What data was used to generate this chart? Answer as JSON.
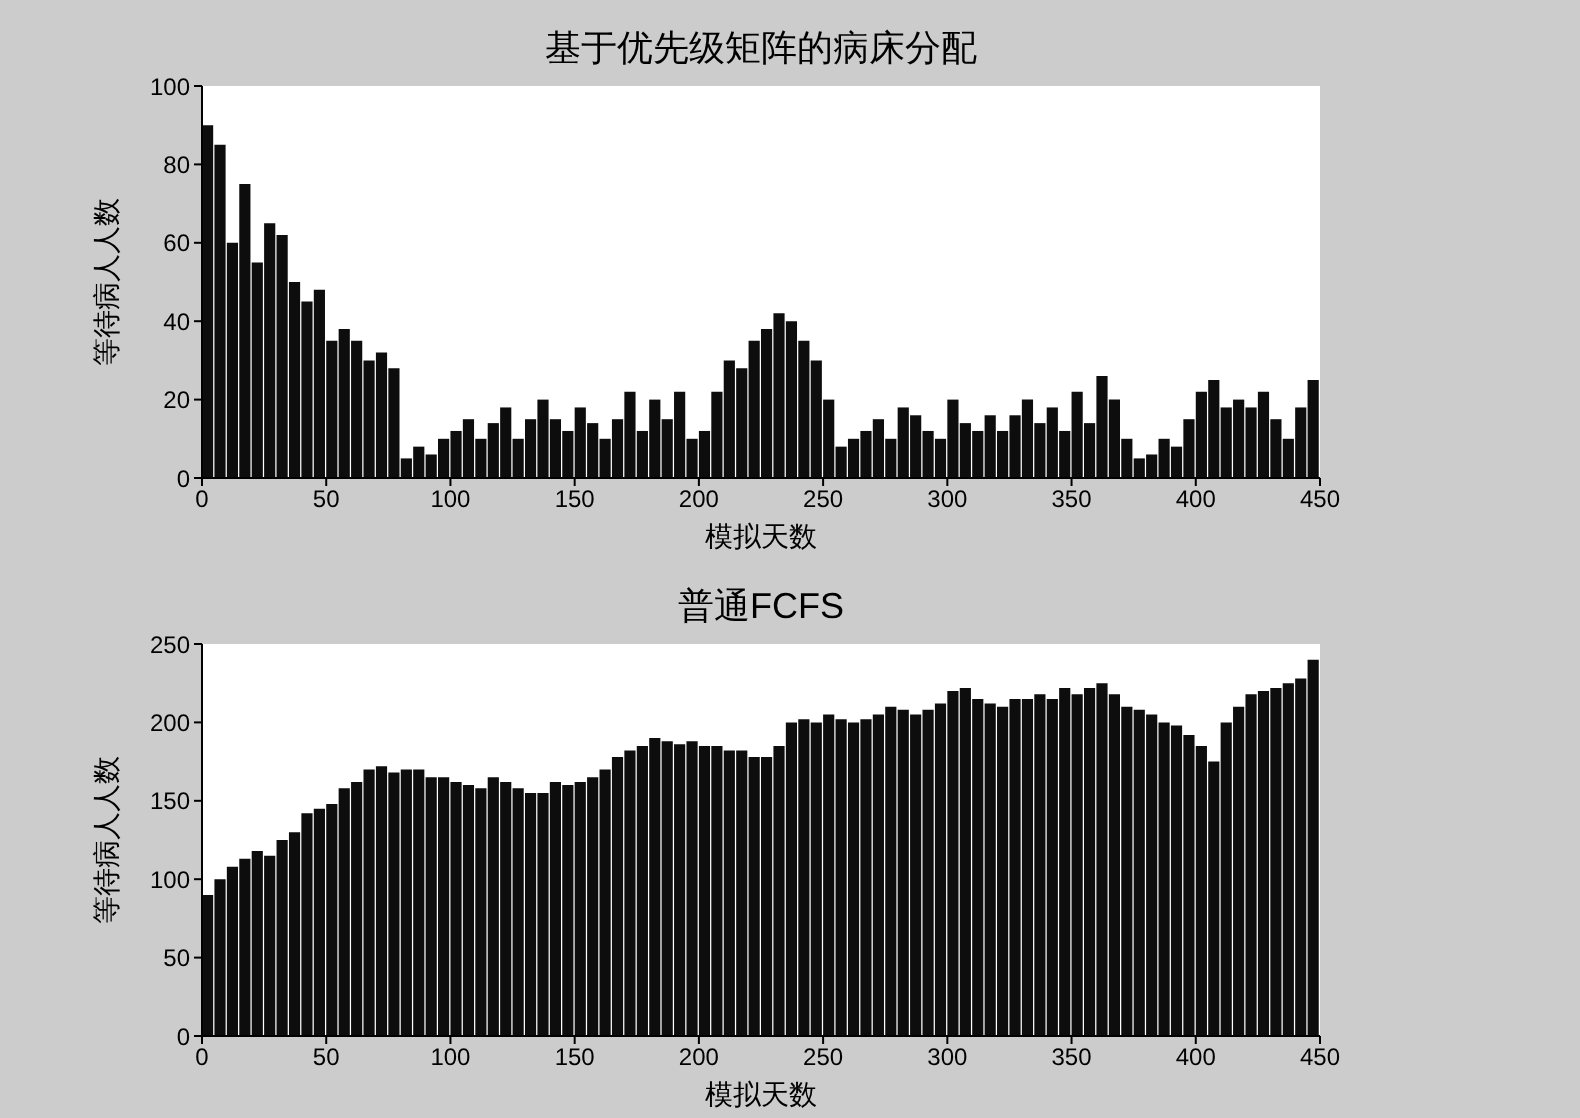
{
  "chart_data": [
    {
      "type": "bar",
      "title": "基于优先级矩阵的病床分配",
      "xlabel": "模拟天数",
      "ylabel": "等待病人人数",
      "color": "#0d0d0d",
      "xlim": [
        0,
        450
      ],
      "xticks": [
        0,
        50,
        100,
        150,
        200,
        250,
        300,
        350,
        400,
        450
      ],
      "ylim": [
        0,
        100
      ],
      "yticks": [
        0,
        20,
        40,
        60,
        80,
        100
      ],
      "x": [
        2.5,
        7.5,
        12.5,
        17.5,
        22.5,
        27.5,
        32.5,
        37.5,
        42.5,
        47.5,
        52.5,
        57.5,
        62.5,
        67.5,
        72.5,
        77.5,
        82.5,
        87.5,
        92.5,
        97.5,
        102.5,
        107.5,
        112.5,
        117.5,
        122.5,
        127.5,
        132.5,
        137.5,
        142.5,
        147.5,
        152.5,
        157.5,
        162.5,
        167.5,
        172.5,
        177.5,
        182.5,
        187.5,
        192.5,
        197.5,
        202.5,
        207.5,
        212.5,
        217.5,
        222.5,
        227.5,
        232.5,
        237.5,
        242.5,
        247.5,
        252.5,
        257.5,
        262.5,
        267.5,
        272.5,
        277.5,
        282.5,
        287.5,
        292.5,
        297.5,
        302.5,
        307.5,
        312.5,
        317.5,
        322.5,
        327.5,
        332.5,
        337.5,
        342.5,
        347.5,
        352.5,
        357.5,
        362.5,
        367.5,
        372.5,
        377.5,
        382.5,
        387.5,
        392.5,
        397.5,
        402.5,
        407.5,
        412.5,
        417.5,
        422.5,
        427.5,
        432.5,
        437.5,
        442.5,
        447.5
      ],
      "values": [
        90,
        85,
        60,
        75,
        55,
        65,
        62,
        50,
        45,
        48,
        35,
        38,
        35,
        30,
        32,
        28,
        5,
        8,
        6,
        10,
        12,
        15,
        10,
        14,
        18,
        10,
        15,
        20,
        15,
        12,
        18,
        14,
        10,
        15,
        22,
        12,
        20,
        15,
        22,
        10,
        12,
        22,
        30,
        28,
        35,
        38,
        42,
        40,
        35,
        30,
        20,
        8,
        10,
        12,
        15,
        10,
        18,
        16,
        12,
        10,
        20,
        14,
        12,
        16,
        12,
        16,
        20,
        14,
        18,
        12,
        22,
        14,
        26,
        20,
        10,
        5,
        6,
        10,
        8,
        15,
        22,
        25,
        18,
        20,
        18,
        22,
        15,
        10,
        18,
        25
      ]
    },
    {
      "type": "bar",
      "title": "普通FCFS",
      "xlabel": "模拟天数",
      "ylabel": "等待病人人数",
      "color": "#0d0d0d",
      "xlim": [
        0,
        450
      ],
      "xticks": [
        0,
        50,
        100,
        150,
        200,
        250,
        300,
        350,
        400,
        450
      ],
      "ylim": [
        0,
        250
      ],
      "yticks": [
        0,
        50,
        100,
        150,
        200,
        250
      ],
      "x": [
        2.5,
        7.5,
        12.5,
        17.5,
        22.5,
        27.5,
        32.5,
        37.5,
        42.5,
        47.5,
        52.5,
        57.5,
        62.5,
        67.5,
        72.5,
        77.5,
        82.5,
        87.5,
        92.5,
        97.5,
        102.5,
        107.5,
        112.5,
        117.5,
        122.5,
        127.5,
        132.5,
        137.5,
        142.5,
        147.5,
        152.5,
        157.5,
        162.5,
        167.5,
        172.5,
        177.5,
        182.5,
        187.5,
        192.5,
        197.5,
        202.5,
        207.5,
        212.5,
        217.5,
        222.5,
        227.5,
        232.5,
        237.5,
        242.5,
        247.5,
        252.5,
        257.5,
        262.5,
        267.5,
        272.5,
        277.5,
        282.5,
        287.5,
        292.5,
        297.5,
        302.5,
        307.5,
        312.5,
        317.5,
        322.5,
        327.5,
        332.5,
        337.5,
        342.5,
        347.5,
        352.5,
        357.5,
        362.5,
        367.5,
        372.5,
        377.5,
        382.5,
        387.5,
        392.5,
        397.5,
        402.5,
        407.5,
        412.5,
        417.5,
        422.5,
        427.5,
        432.5,
        437.5,
        442.5,
        447.5
      ],
      "values": [
        90,
        100,
        108,
        113,
        118,
        115,
        125,
        130,
        142,
        145,
        148,
        158,
        162,
        170,
        172,
        168,
        170,
        170,
        165,
        165,
        162,
        160,
        158,
        165,
        162,
        158,
        155,
        155,
        162,
        160,
        162,
        165,
        170,
        178,
        182,
        185,
        190,
        188,
        186,
        188,
        185,
        185,
        182,
        182,
        178,
        178,
        185,
        200,
        202,
        200,
        205,
        202,
        200,
        202,
        205,
        210,
        208,
        205,
        208,
        212,
        220,
        222,
        215,
        212,
        210,
        215,
        215,
        218,
        215,
        222,
        218,
        222,
        225,
        218,
        210,
        208,
        205,
        200,
        198,
        192,
        185,
        175,
        200,
        210,
        218,
        220,
        222,
        225,
        228,
        240
      ]
    }
  ]
}
